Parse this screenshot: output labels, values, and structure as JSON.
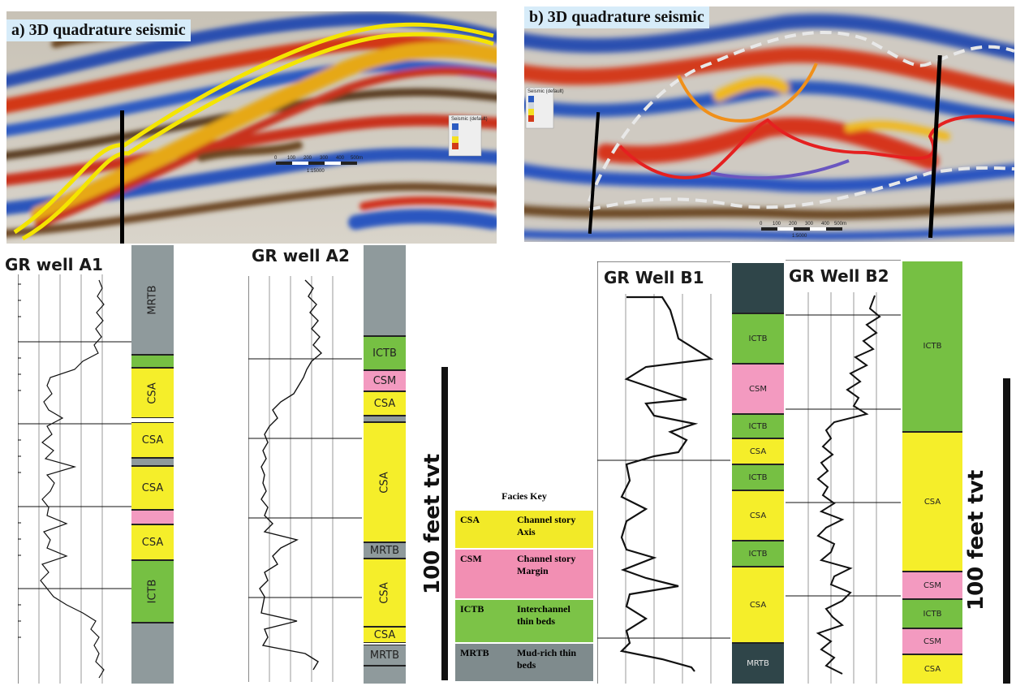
{
  "panels": {
    "a_title": "a) 3D quadrature seismic",
    "b_title": "b) 3D quadrature seismic",
    "scale_ticks": [
      "0",
      "100",
      "200",
      "300",
      "400",
      "500m"
    ],
    "a_scale_ratio": "1:15000",
    "b_scale_ratio": "1:5000",
    "legend_title": "Seismic (default)"
  },
  "wells": {
    "a1_title": "GR well A1",
    "a2_title": "GR well A2",
    "b1_title": "GR Well B1",
    "b2_title": "GR Well B2",
    "a1_facies": [
      "MRTB",
      "CSA",
      "CSA",
      "CSA",
      "CSA",
      "ICTB"
    ],
    "a2_facies": [
      "ICTB",
      "CSM",
      "CSA",
      "CSA",
      "MRTB",
      "CSA",
      "CSA",
      "MRTB"
    ],
    "b1_facies": [
      "ICTB",
      "CSM",
      "ICTB",
      "CSA",
      "ICTB",
      "CSA",
      "ICTB",
      "CSA",
      "MRTB"
    ],
    "b2_facies": [
      "ICTB",
      "CSA",
      "CSM",
      "ICTB",
      "CSM",
      "CSA"
    ]
  },
  "scale_label": "100 feet tvt",
  "facies_key": {
    "title": "Facies Key",
    "rows": [
      {
        "code": "CSA",
        "desc": "Channel story Axis",
        "color": "#f2ea28"
      },
      {
        "code": "CSM",
        "desc": "Channel story Margin",
        "color": "#f28fb3"
      },
      {
        "code": "ICTB",
        "desc": "Interchannel thin beds",
        "color": "#7cc347"
      },
      {
        "code": "MRTB",
        "desc": "Mud-rich thin beds",
        "color": "#7f8b8d"
      }
    ]
  },
  "colors": {
    "CSA": "#f5ee2a",
    "CSM": "#f39ac0",
    "ICTB": "#76c043",
    "MRTB": "#8f9a9c",
    "MRTB_dark": "#2f4549"
  }
}
